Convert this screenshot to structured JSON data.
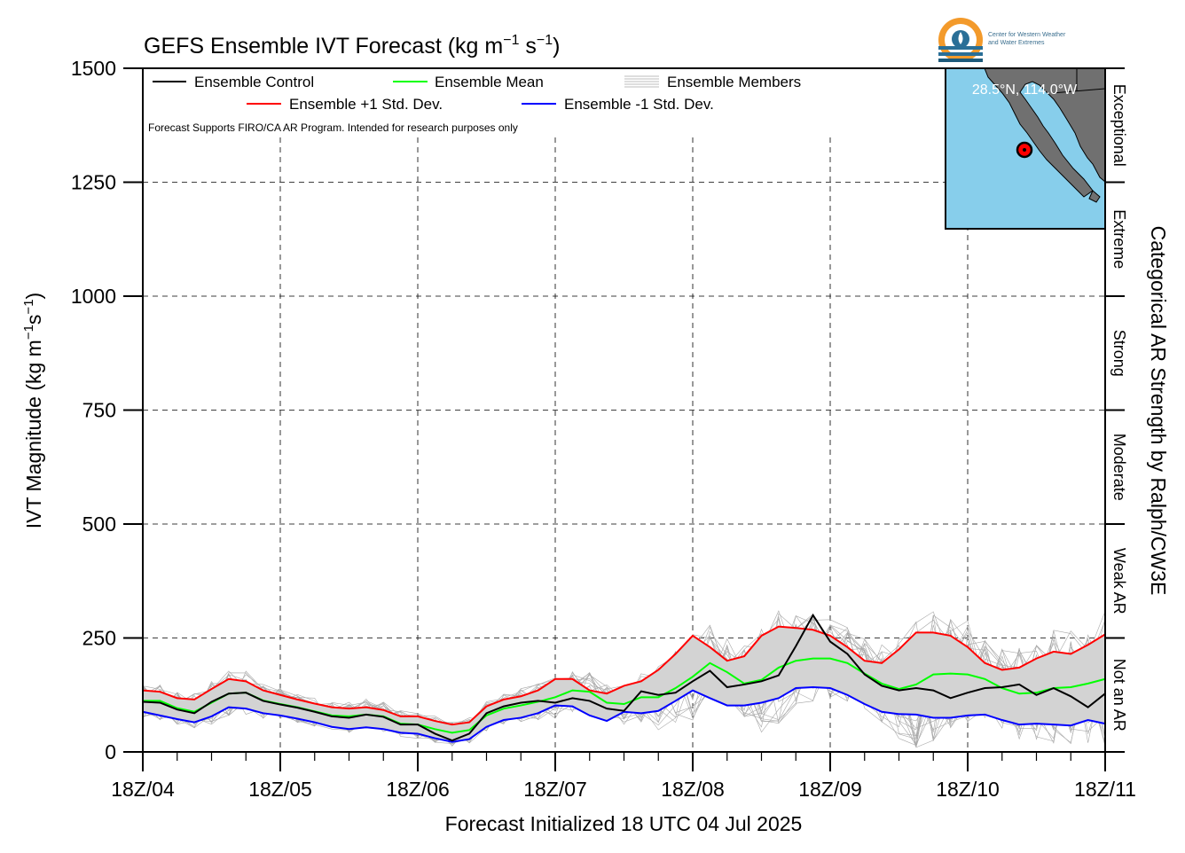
{
  "title_main": "GEFS Ensemble IVT Forecast (kg m",
  "title_sup1": "−1",
  "title_mid": " s",
  "title_sup2": "−1",
  "title_end": ")",
  "logo": {
    "line1": "Center for Western Weather",
    "line2": "and Water Extremes",
    "icon": "cw3e-logo-icon"
  },
  "note": "Forecast Supports FIRO/CA AR Program. Intended for research purposes only",
  "xlabel": "Forecast Initialized 18 UTC 04 Jul 2025",
  "ylabel_main": "IVT Magnitude (kg m",
  "ylabel_sup1": "−1",
  "ylabel_mid": "s",
  "ylabel_sup2": "−1",
  "ylabel_end": ")",
  "right_label": "Categorical AR Strength by Ralph/CW3E",
  "inset": {
    "location": "28.5°N, 114.0°W",
    "ocean_color": "#87ceeb",
    "land_color": "#707070"
  },
  "legend": [
    {
      "label": "Ensemble Control",
      "color": "#000000",
      "style": "solid"
    },
    {
      "label": "Ensemble Mean",
      "color": "#00ff00",
      "style": "solid"
    },
    {
      "label": "Ensemble Members",
      "color": "#a0a0a0",
      "style": "multi"
    },
    {
      "label": "Ensemble +1 Std. Dev.",
      "color": "#ff0000",
      "style": "solid"
    },
    {
      "label": "Ensemble -1 Std. Dev.",
      "color": "#0000ff",
      "style": "solid"
    }
  ],
  "categories": [
    {
      "label": "Not an AR",
      "min": 0,
      "max": 250
    },
    {
      "label": "Weak AR",
      "min": 250,
      "max": 500
    },
    {
      "label": "Moderate",
      "min": 500,
      "max": 750
    },
    {
      "label": "Strong",
      "min": 750,
      "max": 1000
    },
    {
      "label": "Extreme",
      "min": 1000,
      "max": 1250
    },
    {
      "label": "Exceptional",
      "min": 1250,
      "max": 1500
    }
  ],
  "chart_data": {
    "type": "line",
    "x_unit": "forecast hour (6-hourly from 18Z 04 Jul 2025)",
    "xlim": [
      0,
      168
    ],
    "ylim": [
      0,
      1500
    ],
    "yticks": [
      0,
      250,
      500,
      750,
      1000,
      1250,
      1500
    ],
    "xticks": [
      {
        "hour": 0,
        "label": "18Z/04"
      },
      {
        "hour": 24,
        "label": "18Z/05"
      },
      {
        "hour": 48,
        "label": "18Z/06"
      },
      {
        "hour": 72,
        "label": "18Z/07"
      },
      {
        "hour": 96,
        "label": "18Z/08"
      },
      {
        "hour": 120,
        "label": "18Z/09"
      },
      {
        "hour": 144,
        "label": "18Z/10"
      },
      {
        "hour": 168,
        "label": "18Z/11"
      }
    ],
    "grid": true,
    "legend_position": "top",
    "x": [
      0,
      3,
      6,
      9,
      12,
      15,
      18,
      21,
      24,
      27,
      30,
      33,
      36,
      39,
      42,
      45,
      48,
      51,
      54,
      57,
      60,
      63,
      66,
      69,
      72,
      75,
      78,
      81,
      84,
      87,
      90,
      93,
      96,
      99,
      102,
      105,
      108,
      111,
      114,
      117,
      120,
      123,
      126,
      129,
      132,
      135,
      138,
      141,
      144,
      147,
      150,
      153,
      156,
      159,
      162,
      165,
      168
    ],
    "series": [
      {
        "name": "Ensemble Control",
        "color": "#000000",
        "values": [
          110,
          108,
          93,
          85,
          110,
          128,
          130,
          112,
          104,
          97,
          88,
          78,
          75,
          82,
          77,
          60,
          60,
          40,
          25,
          40,
          85,
          100,
          108,
          112,
          108,
          118,
          112,
          95,
          90,
          133,
          125,
          130,
          155,
          178,
          142,
          148,
          155,
          168,
          232,
          300,
          242,
          215,
          170,
          145,
          135,
          140,
          135,
          118,
          130,
          140,
          142,
          148,
          125,
          140,
          122,
          98,
          128
        ]
      },
      {
        "name": "Ensemble Mean",
        "color": "#00ff00",
        "values": [
          112,
          112,
          96,
          88,
          108,
          128,
          130,
          113,
          105,
          98,
          89,
          80,
          78,
          82,
          78,
          62,
          60,
          50,
          42,
          48,
          80,
          95,
          102,
          110,
          120,
          135,
          132,
          108,
          105,
          120,
          120,
          140,
          165,
          195,
          175,
          150,
          158,
          185,
          200,
          205,
          205,
          195,
          172,
          150,
          138,
          148,
          170,
          172,
          170,
          160,
          140,
          128,
          130,
          140,
          142,
          150,
          160
        ]
      },
      {
        "name": "Ensemble +1 Std. Dev.",
        "color": "#ff0000",
        "values": [
          135,
          132,
          118,
          115,
          138,
          160,
          155,
          135,
          125,
          115,
          106,
          98,
          95,
          98,
          92,
          78,
          78,
          68,
          60,
          65,
          100,
          115,
          122,
          135,
          160,
          160,
          135,
          128,
          145,
          155,
          180,
          215,
          255,
          230,
          200,
          210,
          255,
          275,
          272,
          268,
          255,
          230,
          200,
          195,
          225,
          262,
          262,
          255,
          230,
          195,
          180,
          185,
          205,
          220,
          215,
          235,
          258
        ]
      },
      {
        "name": "Ensemble -1 Std. Dev.",
        "color": "#0000ff",
        "values": [
          88,
          80,
          72,
          65,
          78,
          98,
          95,
          85,
          80,
          73,
          65,
          55,
          50,
          54,
          50,
          42,
          40,
          30,
          22,
          28,
          55,
          70,
          75,
          85,
          102,
          100,
          80,
          68,
          88,
          85,
          90,
          112,
          135,
          118,
          102,
          102,
          108,
          118,
          140,
          142,
          140,
          125,
          105,
          88,
          83,
          82,
          75,
          75,
          80,
          82,
          70,
          60,
          62,
          60,
          58,
          70,
          62
        ]
      },
      {
        "name": "Ensemble Members",
        "color": "#a8a8a8",
        "note": "thin grey ensemble spread (~30 members)"
      }
    ]
  }
}
